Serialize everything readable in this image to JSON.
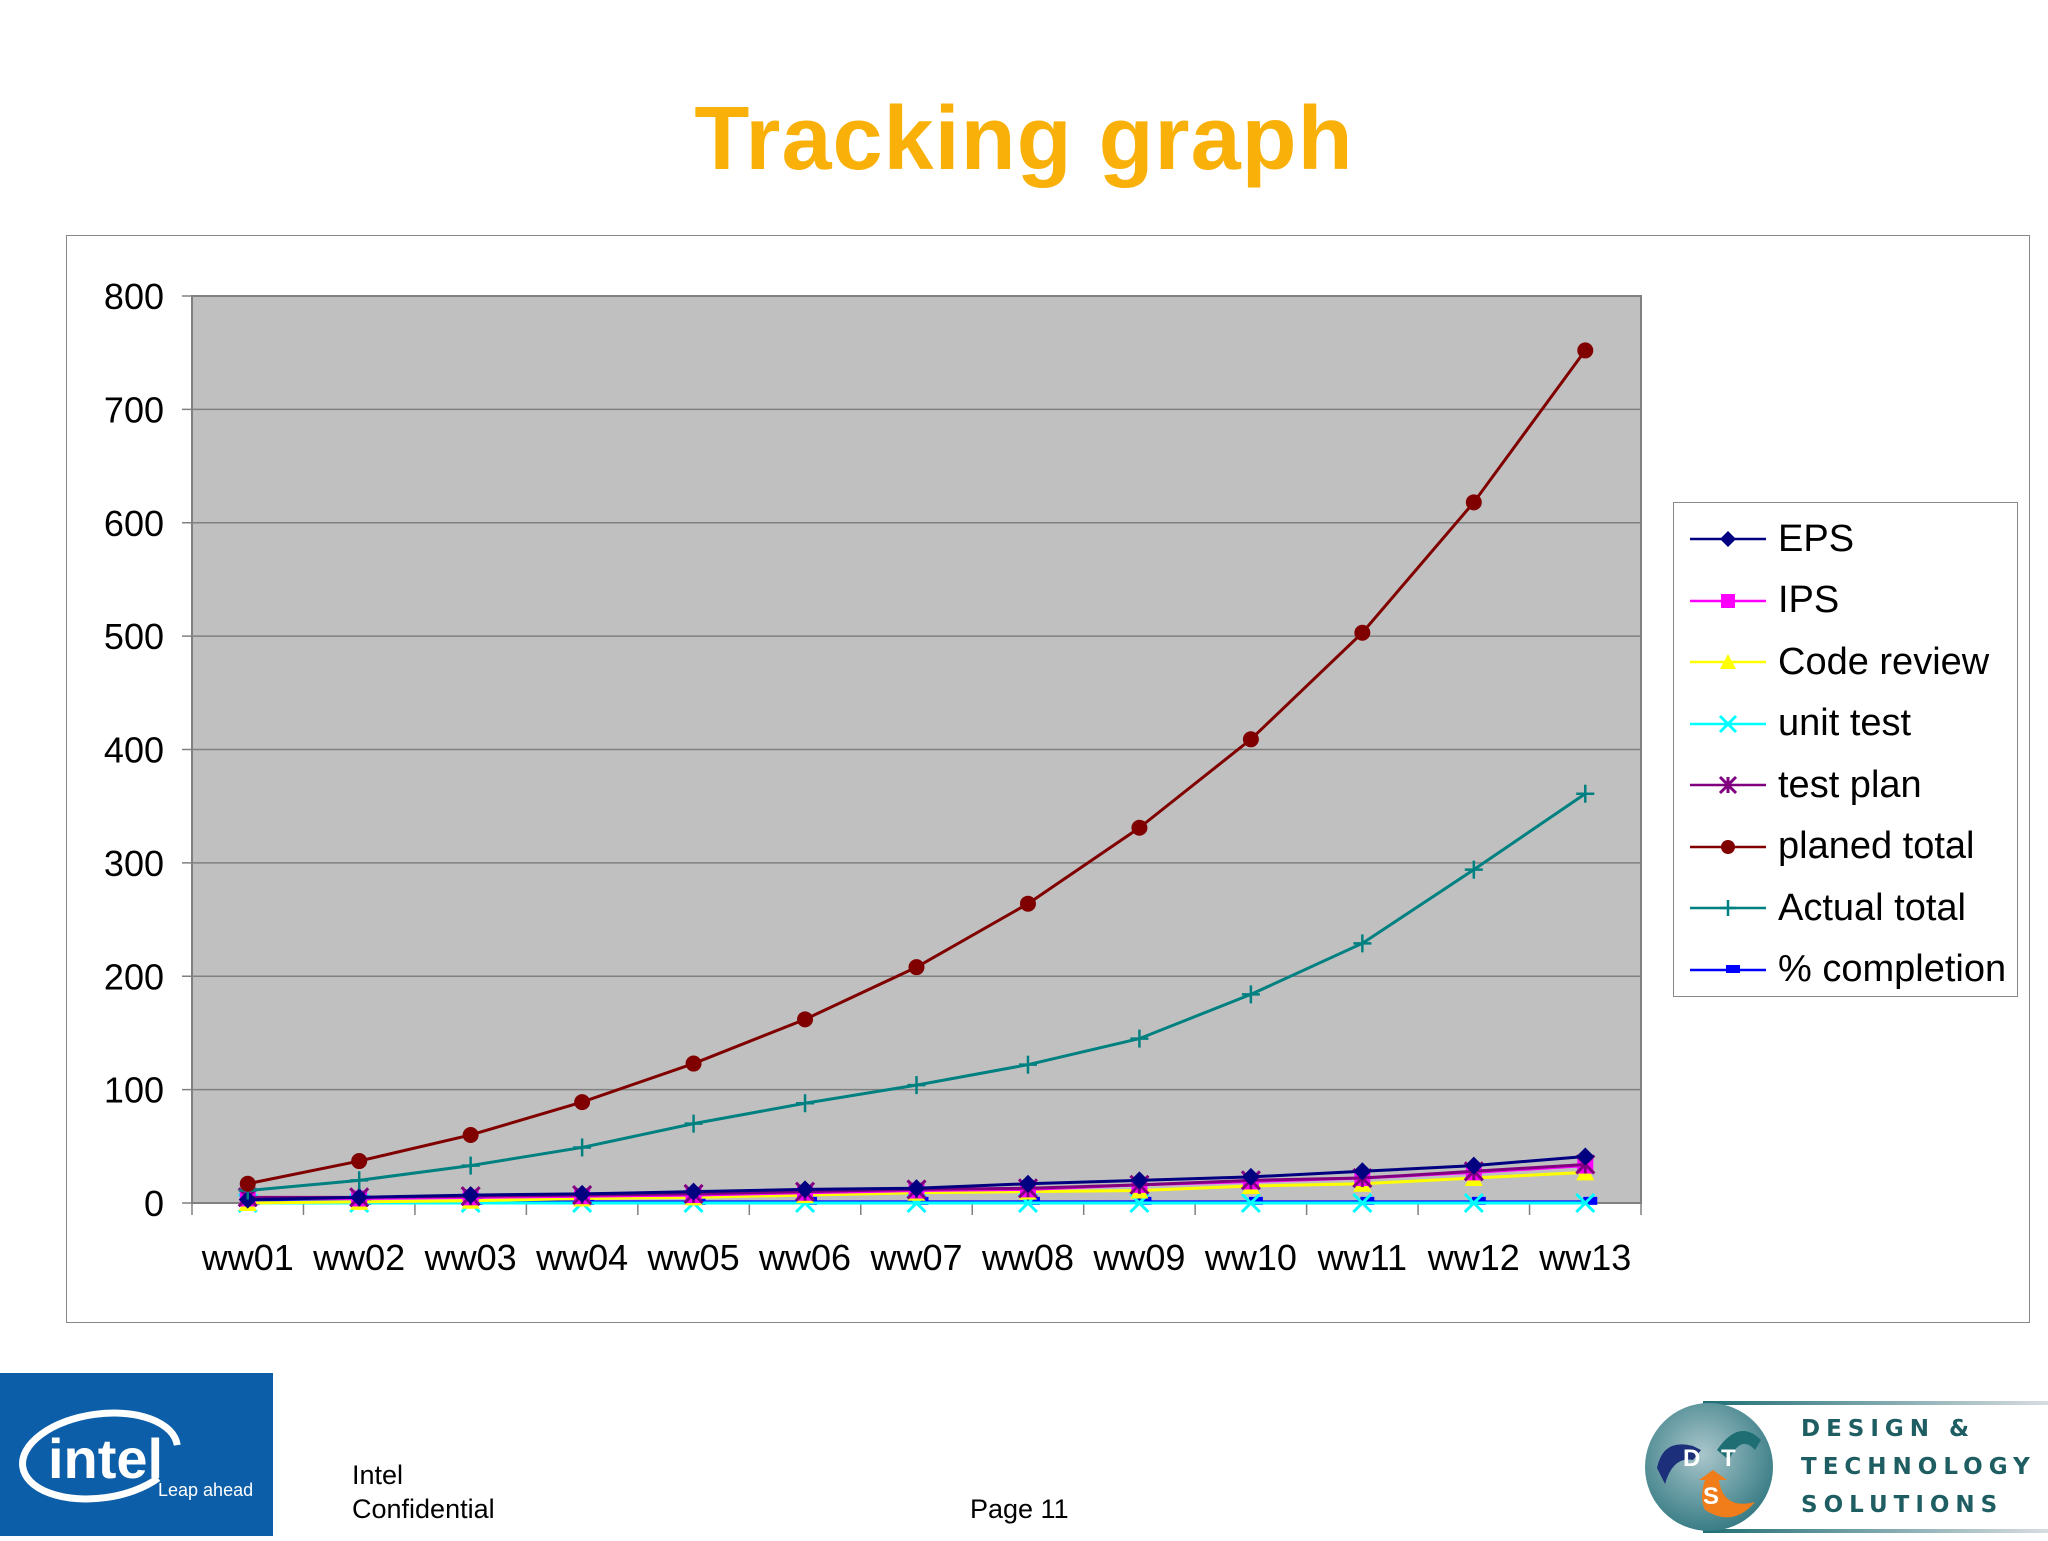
{
  "slide": {
    "title": "Tracking graph",
    "page_label": "Page 11",
    "confidential_line1": "Intel",
    "confidential_line2": "Confidential"
  },
  "logos": {
    "intel": {
      "wordmark": "intel",
      "tagline": "Leap ahead",
      "bg_color": "#0C5EA8"
    },
    "dts": {
      "letters": [
        "D",
        "T",
        "S"
      ],
      "line1": "DESIGN &",
      "line2": "TECHNOLOGY",
      "line3": "SOLUTIONS"
    }
  },
  "chart_data": {
    "type": "line",
    "title": "Tracking graph",
    "xlabel": "",
    "ylabel": "",
    "ylim": [
      0,
      800
    ],
    "yticks": [
      0,
      100,
      200,
      300,
      400,
      500,
      600,
      700,
      800
    ],
    "grid": "horizontal",
    "plot_background": "#C0C0C0",
    "legend_position": "right",
    "categories": [
      "ww01",
      "ww02",
      "ww03",
      "ww04",
      "ww05",
      "ww06",
      "ww07",
      "ww08",
      "ww09",
      "ww10",
      "ww11",
      "ww12",
      "ww13"
    ],
    "series": [
      {
        "name": "EPS",
        "color": "#000080",
        "marker": "diamond",
        "values": [
          3,
          5,
          7,
          8,
          10,
          12,
          13,
          17,
          20,
          23,
          28,
          33,
          41
        ]
      },
      {
        "name": "IPS",
        "color": "#FF00FF",
        "marker": "square",
        "values": [
          4,
          4,
          5,
          6,
          7,
          9,
          11,
          12,
          16,
          19,
          22,
          27,
          33
        ]
      },
      {
        "name": "Code review",
        "color": "#FFFF00",
        "marker": "triangle",
        "values": [
          0,
          1,
          2,
          4,
          5,
          7,
          9,
          10,
          11,
          15,
          17,
          22,
          27
        ]
      },
      {
        "name": "unit test",
        "color": "#00FFFF",
        "marker": "x",
        "values": [
          0,
          0,
          0,
          0,
          0,
          0,
          0,
          0,
          0,
          0,
          0,
          0,
          0
        ]
      },
      {
        "name": "test plan",
        "color": "#800080",
        "marker": "star",
        "values": [
          5,
          5,
          6,
          7,
          8,
          10,
          12,
          13,
          16,
          20,
          22,
          28,
          34
        ]
      },
      {
        "name": "planed total",
        "color": "#800000",
        "marker": "circle",
        "values": [
          17,
          37,
          60,
          89,
          123,
          162,
          208,
          264,
          331,
          409,
          503,
          618,
          752
        ]
      },
      {
        "name": "Actual total",
        "color": "#008080",
        "marker": "plus",
        "values": [
          11,
          20,
          33,
          49,
          70,
          88,
          104,
          122,
          145,
          184,
          229,
          294,
          361
        ]
      },
      {
        "name": "% completion",
        "color": "#0000FF",
        "marker": "dash",
        "values": [
          1,
          1,
          1,
          1,
          1,
          1,
          1,
          1,
          1,
          1,
          1,
          1,
          1
        ]
      }
    ]
  }
}
